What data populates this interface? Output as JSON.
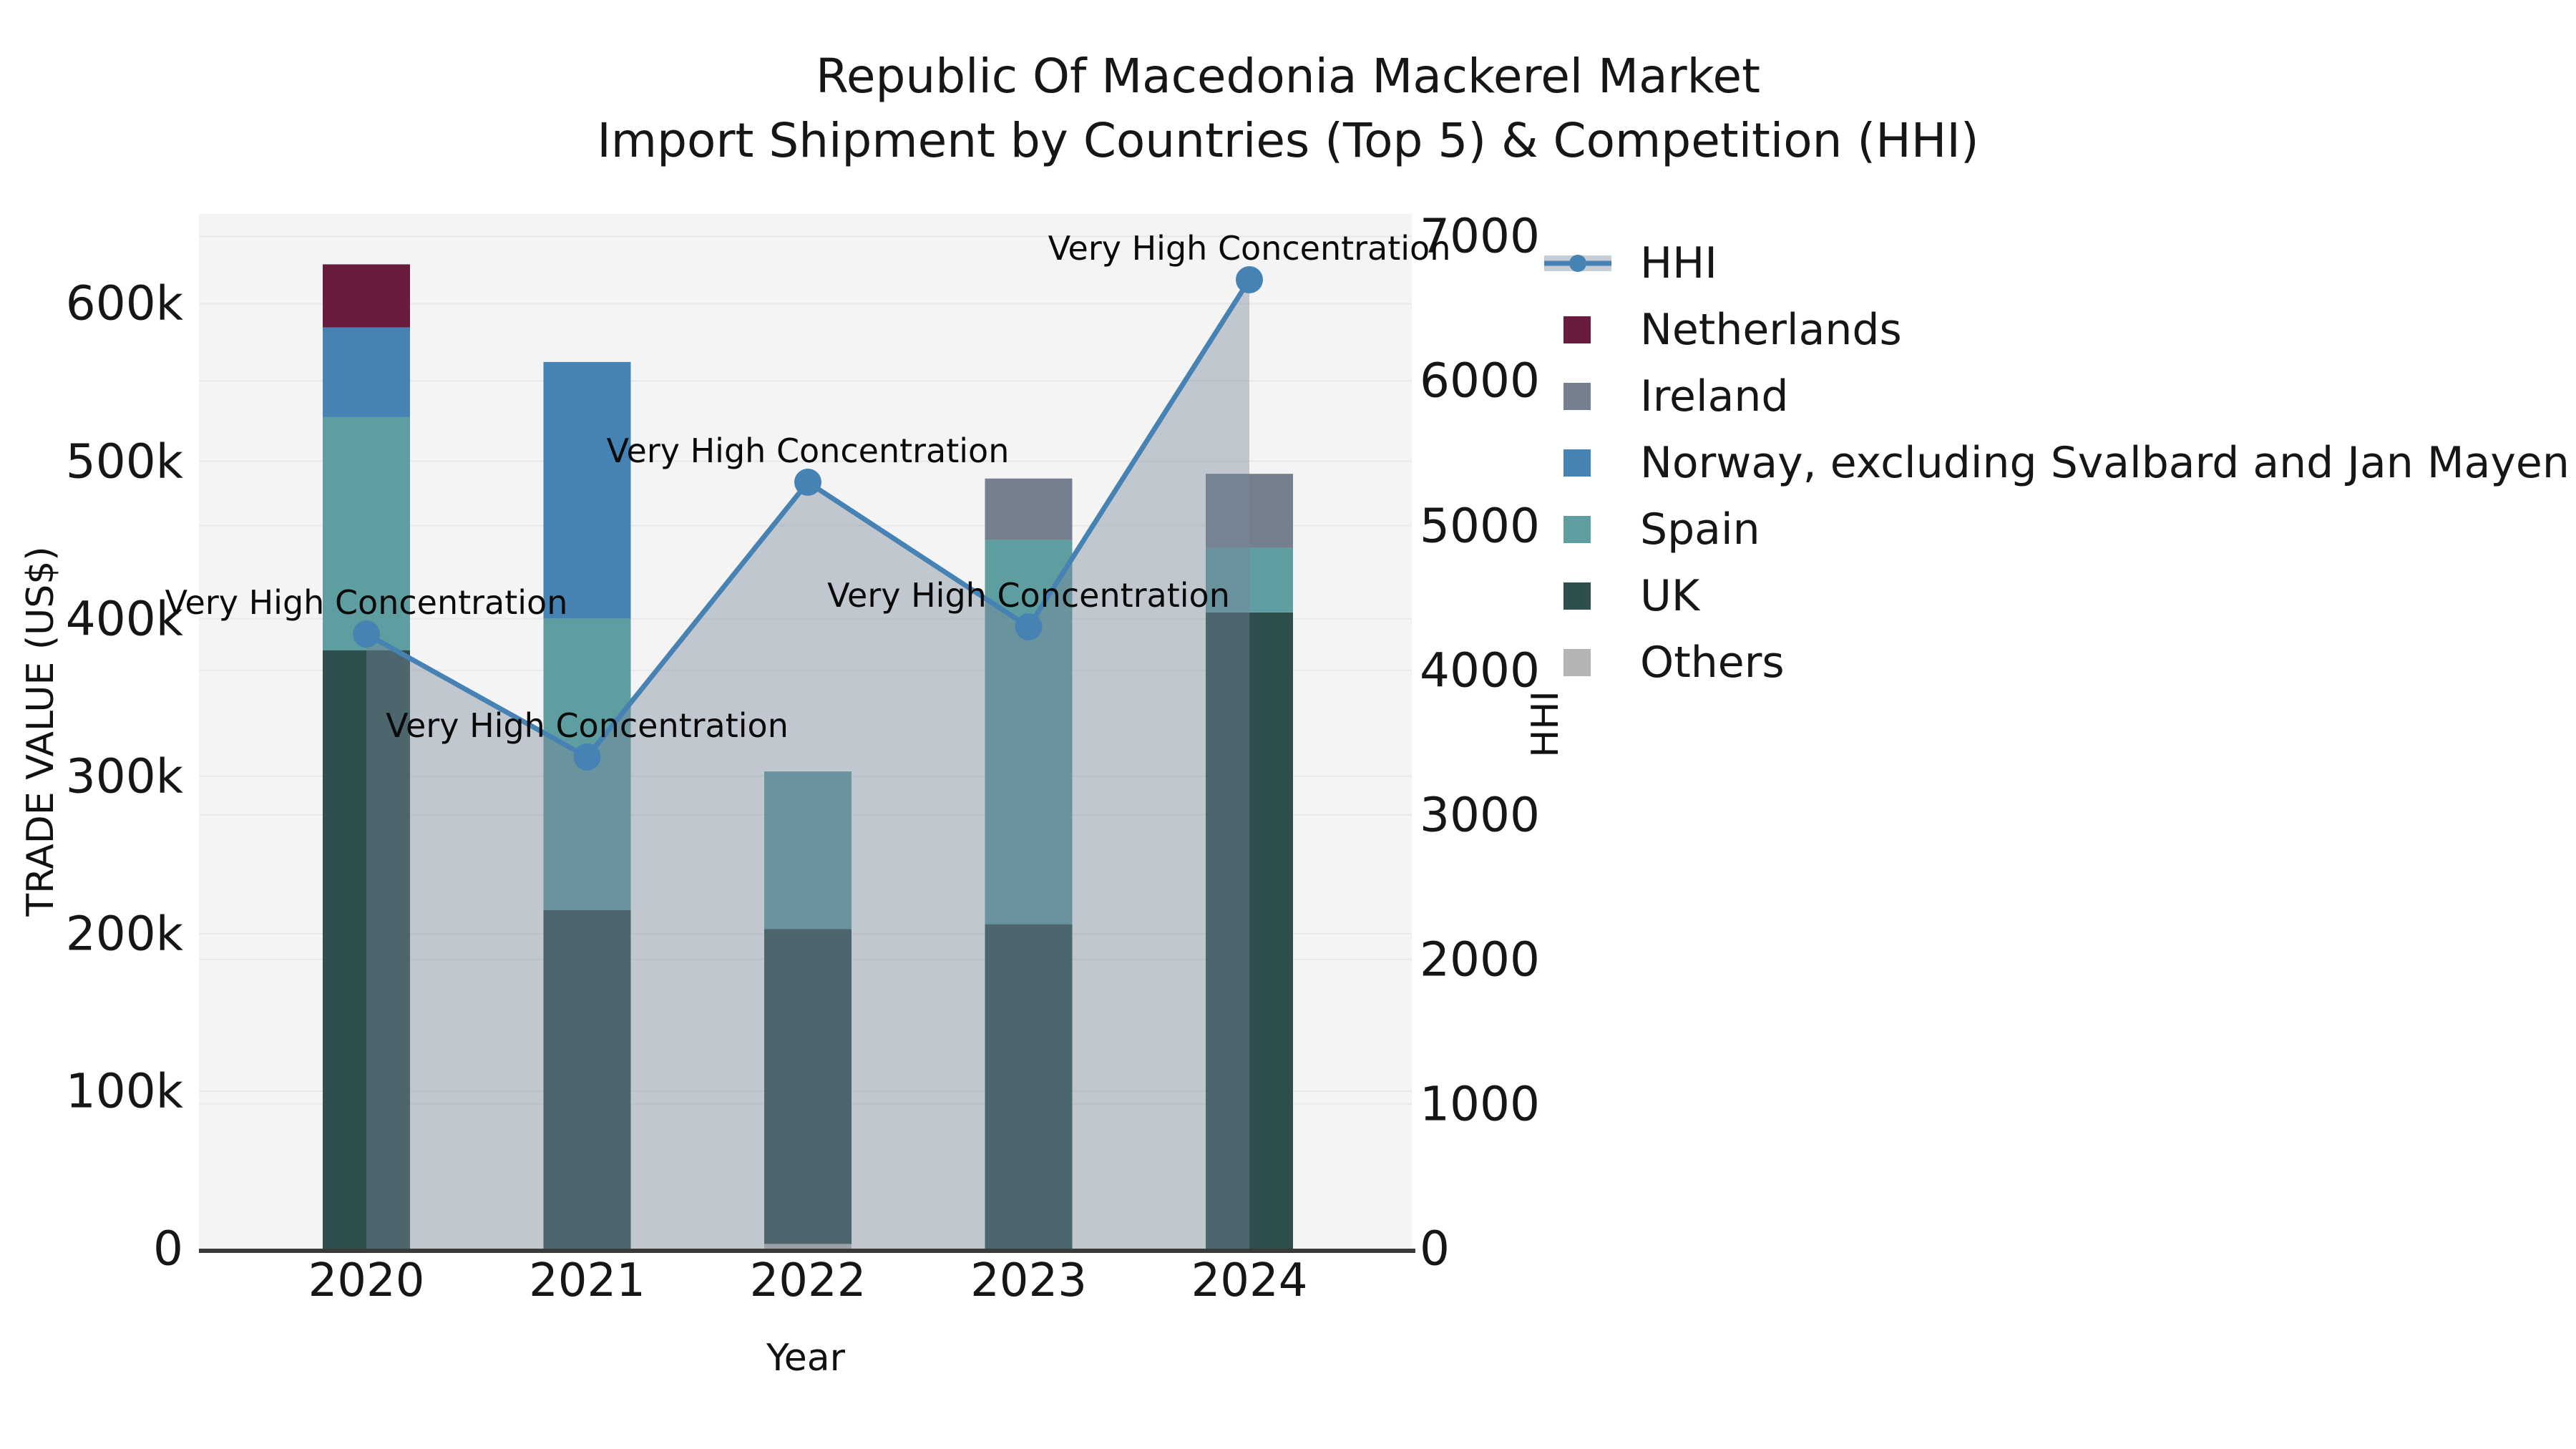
{
  "title": {
    "line1": "Republic Of Macedonia Mackerel Market",
    "line2": "Import Shipment by Countries (Top 5) & Competition (HHI)"
  },
  "axes": {
    "left": {
      "label": "TRADE VALUE (US$)",
      "ticks": [
        {
          "value": 0,
          "label": "0"
        },
        {
          "value": 100000,
          "label": "100k"
        },
        {
          "value": 200000,
          "label": "200k"
        },
        {
          "value": 300000,
          "label": "300k"
        },
        {
          "value": 400000,
          "label": "400k"
        },
        {
          "value": 500000,
          "label": "500k"
        },
        {
          "value": 600000,
          "label": "600k"
        }
      ]
    },
    "right": {
      "label": "HHI",
      "ticks": [
        {
          "value": 0,
          "label": "0"
        },
        {
          "value": 1000,
          "label": "1000"
        },
        {
          "value": 2000,
          "label": "2000"
        },
        {
          "value": 3000,
          "label": "3000"
        },
        {
          "value": 4000,
          "label": "4000"
        },
        {
          "value": 5000,
          "label": "5000"
        },
        {
          "value": 6000,
          "label": "6000"
        },
        {
          "value": 7000,
          "label": "7000"
        }
      ]
    },
    "x": {
      "label": "Year",
      "categories": [
        "2020",
        "2021",
        "2022",
        "2023",
        "2024"
      ]
    }
  },
  "legend": {
    "items": [
      {
        "label": "HHI",
        "type": "line",
        "color": "#4682B4"
      },
      {
        "label": "Netherlands",
        "type": "patch",
        "color": "#6A1C3E"
      },
      {
        "label": "Ireland",
        "type": "patch",
        "color": "#75808E"
      },
      {
        "label": "Norway, excluding Svalbard and Jan Mayen",
        "type": "patch",
        "color": "#4583B5"
      },
      {
        "label": "Spain",
        "type": "patch",
        "color": "#5F9EA0"
      },
      {
        "label": "UK",
        "type": "patch",
        "color": "#2F4F4F"
      },
      {
        "label": "Others",
        "type": "patch",
        "color": "#B4B4B4"
      }
    ]
  },
  "annotation_label": "Very High Concentration",
  "colors": {
    "figure_background": "#FFFFFF",
    "plot_background": "#F4F4F4",
    "gridline": "#E8E8E8",
    "axis_line": "#3A3A3A",
    "hhi_line": "#4682B4",
    "hhi_area_fill": "rgba(119,136,153,0.42)",
    "text": "#161616"
  },
  "chart_data": {
    "type": "bar",
    "subtype": "stacked-bars-with-dual-axis-line",
    "title": "Republic Of Macedonia Mackerel Market — Import Shipment by Countries (Top 5) & Competition (HHI)",
    "xlabel": "Year",
    "ylabel_left": "TRADE VALUE (US$)",
    "ylabel_right": "HHI",
    "categories": [
      "2020",
      "2021",
      "2022",
      "2023",
      "2024"
    ],
    "stack_order_bottom_to_top": [
      "Others",
      "UK",
      "Spain",
      "Norway, excluding Svalbard and Jan Mayen",
      "Ireland",
      "Netherlands"
    ],
    "series": [
      {
        "name": "Others",
        "axis": "left",
        "color": "#B4B4B4",
        "values": [
          0,
          0,
          3000,
          0,
          0
        ]
      },
      {
        "name": "UK",
        "axis": "left",
        "color": "#2F4F4F",
        "values": [
          380000,
          215000,
          200000,
          206000,
          404000
        ]
      },
      {
        "name": "Spain",
        "axis": "left",
        "color": "#5F9EA0",
        "values": [
          148000,
          185000,
          100000,
          244000,
          41000
        ]
      },
      {
        "name": "Norway, excluding Svalbard and Jan Mayen",
        "axis": "left",
        "color": "#4583B5",
        "values": [
          57000,
          163000,
          0,
          0,
          0
        ]
      },
      {
        "name": "Ireland",
        "axis": "left",
        "color": "#75808E",
        "values": [
          0,
          0,
          0,
          39000,
          47000
        ]
      },
      {
        "name": "Netherlands",
        "axis": "left",
        "color": "#6A1C3E",
        "values": [
          40000,
          0,
          0,
          0,
          0
        ]
      }
    ],
    "bar_totals": [
      625000,
      563000,
      303000,
      489000,
      492000
    ],
    "line_series": {
      "name": "HHI",
      "axis": "right",
      "color": "#4682B4",
      "area_fill": "rgba(119,136,153,0.42)",
      "values": [
        4250,
        3400,
        5300,
        4300,
        6700
      ],
      "point_annotations": [
        "Very High Concentration",
        "Very High Concentration",
        "Very High Concentration",
        "Very High Concentration",
        "Very High Concentration"
      ]
    },
    "ylim_left": [
      0,
      657000
    ],
    "ylim_right": [
      0,
      7155
    ],
    "grid": "horizontal, at ticks of both y-axes",
    "legend_position": "outside upper right"
  }
}
